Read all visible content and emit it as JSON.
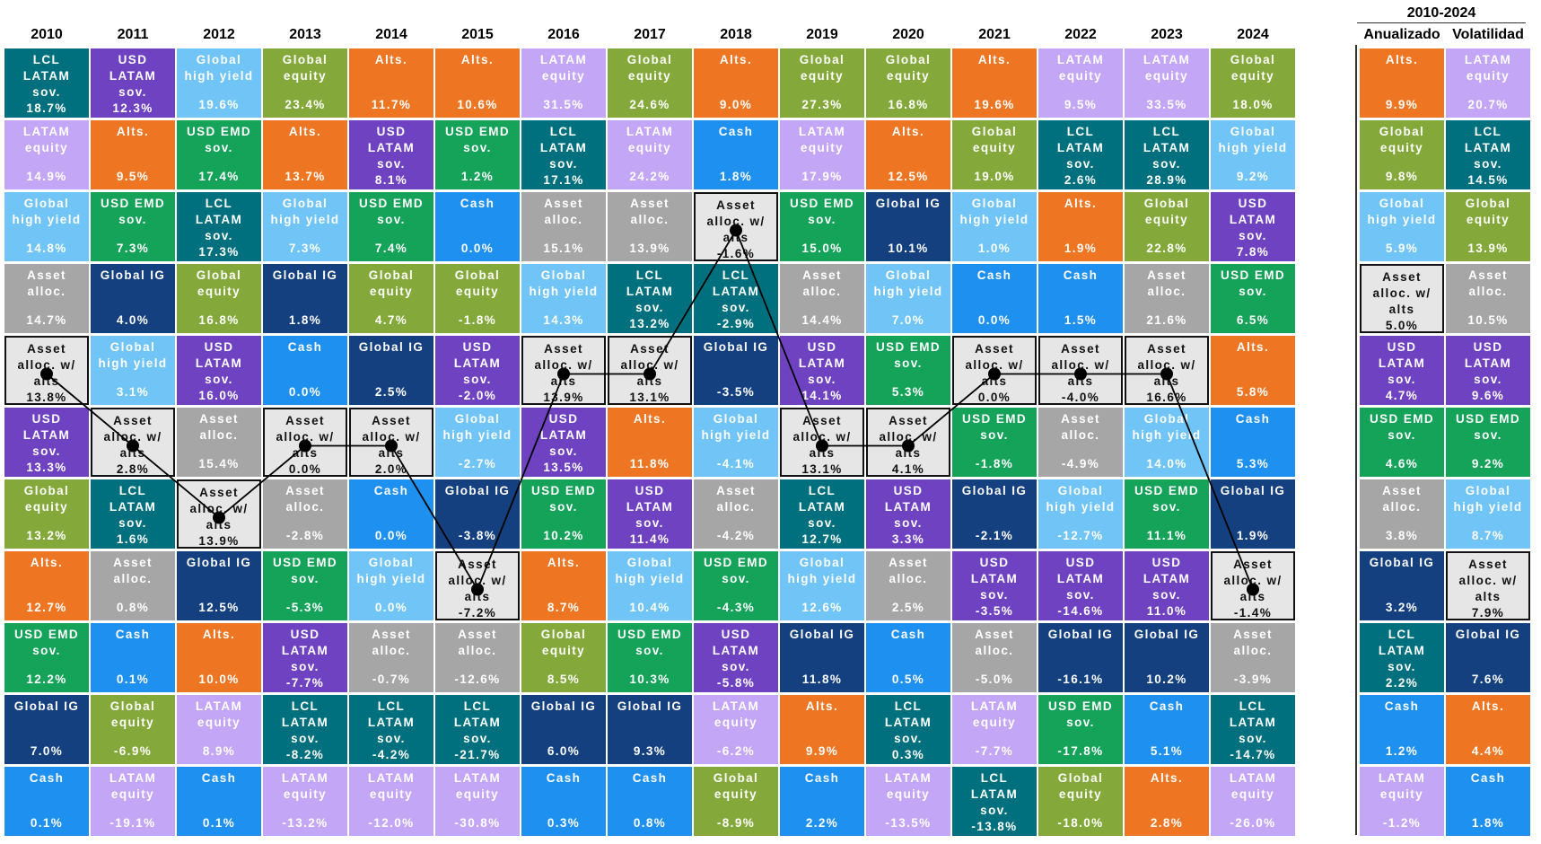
{
  "years": [
    "2010",
    "2011",
    "2012",
    "2013",
    "2014",
    "2015",
    "2016",
    "2017",
    "2018",
    "2019",
    "2020",
    "2021",
    "2022",
    "2023",
    "2024"
  ],
  "summary": {
    "period": "2010-2024",
    "columns": [
      "Anualizado",
      "Volatilidad"
    ]
  },
  "asset_classes": {
    "LCL": {
      "label": "LCL\nLATAM\nsov.",
      "color": "#00707f",
      "text_color": "#ffffff"
    },
    "USD": {
      "label": "USD\nLATAM\nsov.",
      "color": "#6f42c1",
      "text_color": "#ffffff"
    },
    "GHY": {
      "label": "Global\nhigh yield",
      "color": "#70c4f6",
      "text_color": "#ffffff"
    },
    "GEQ": {
      "label": "Global\nequity",
      "color": "#84a93a",
      "text_color": "#ffffff"
    },
    "ALT": {
      "label": "Alts.",
      "color": "#ee7622",
      "text_color": "#ffffff"
    },
    "LEQ": {
      "label": "LATAM\nequity",
      "color": "#c3a6f5",
      "text_color": "#ffffff"
    },
    "CASH": {
      "label": "Cash",
      "color": "#1e90f0",
      "text_color": "#ffffff"
    },
    "EMD": {
      "label": "USD EMD\nsov.",
      "color": "#15a35a",
      "text_color": "#ffffff"
    },
    "AA": {
      "label": "Asset\nalloc.",
      "color": "#a6a6a6",
      "text_color": "#ffffff"
    },
    "AAW": {
      "label": "Asset\nalloc. w/\nalts",
      "color": "#e6e6e6",
      "text_color": "#111111"
    },
    "IG": {
      "label": "Global IG",
      "color": "#14407f",
      "text_color": "#ffffff"
    }
  },
  "chart_data": {
    "type": "table",
    "title": "",
    "highlight": "AAW",
    "columns": [
      {
        "header": "2010",
        "cells": [
          [
            "LCL",
            "18.7%"
          ],
          [
            "LEQ",
            "14.9%"
          ],
          [
            "GHY",
            "14.8%"
          ],
          [
            "AA",
            "14.7%"
          ],
          [
            "AAW",
            "13.8%"
          ],
          [
            "USD",
            "13.3%"
          ],
          [
            "GEQ",
            "13.2%"
          ],
          [
            "ALT",
            "12.7%"
          ],
          [
            "EMD",
            "12.2%"
          ],
          [
            "IG",
            "7.0%"
          ],
          [
            "CASH",
            "0.1%"
          ]
        ]
      },
      {
        "header": "2011",
        "cells": [
          [
            "USD",
            "12.3%"
          ],
          [
            "ALT",
            "9.5%"
          ],
          [
            "EMD",
            "7.3%"
          ],
          [
            "IG",
            "4.0%"
          ],
          [
            "GHY",
            "3.1%"
          ],
          [
            "AAW",
            "2.8%"
          ],
          [
            "LCL",
            "1.6%"
          ],
          [
            "AA",
            "0.8%"
          ],
          [
            "CASH",
            "0.1%"
          ],
          [
            "GEQ",
            "-6.9%"
          ],
          [
            "LEQ",
            "-19.1%"
          ]
        ]
      },
      {
        "header": "2012",
        "cells": [
          [
            "GHY",
            "19.6%"
          ],
          [
            "EMD",
            "17.4%"
          ],
          [
            "LCL",
            "17.3%"
          ],
          [
            "GEQ",
            "16.8%"
          ],
          [
            "USD",
            "16.0%"
          ],
          [
            "AA",
            "15.4%"
          ],
          [
            "AAW",
            "13.9%"
          ],
          [
            "IG",
            "12.5%"
          ],
          [
            "ALT",
            "10.0%"
          ],
          [
            "LEQ",
            "8.9%"
          ],
          [
            "CASH",
            "0.1%"
          ]
        ]
      },
      {
        "header": "2013",
        "cells": [
          [
            "GEQ",
            "23.4%"
          ],
          [
            "ALT",
            "13.7%"
          ],
          [
            "GHY",
            "7.3%"
          ],
          [
            "IG",
            "1.8%"
          ],
          [
            "CASH",
            "0.0%"
          ],
          [
            "AAW",
            "0.0%"
          ],
          [
            "AA",
            "-2.8%"
          ],
          [
            "EMD",
            "-5.3%"
          ],
          [
            "USD",
            "-7.7%"
          ],
          [
            "LCL",
            "-8.2%"
          ],
          [
            "LEQ",
            "-13.2%"
          ]
        ]
      },
      {
        "header": "2014",
        "cells": [
          [
            "ALT",
            "11.7%"
          ],
          [
            "USD",
            "8.1%"
          ],
          [
            "EMD",
            "7.4%"
          ],
          [
            "GEQ",
            "4.7%"
          ],
          [
            "IG",
            "2.5%"
          ],
          [
            "AAW",
            "2.0%"
          ],
          [
            "CASH",
            "0.0%"
          ],
          [
            "GHY",
            "0.0%"
          ],
          [
            "AA",
            "-0.7%"
          ],
          [
            "LCL",
            "-4.2%"
          ],
          [
            "LEQ",
            "-12.0%"
          ]
        ]
      },
      {
        "header": "2015",
        "cells": [
          [
            "ALT",
            "10.6%"
          ],
          [
            "EMD",
            "1.2%"
          ],
          [
            "CASH",
            "0.0%"
          ],
          [
            "GEQ",
            "-1.8%"
          ],
          [
            "USD",
            "-2.0%"
          ],
          [
            "GHY",
            "-2.7%"
          ],
          [
            "IG",
            "-3.8%"
          ],
          [
            "AAW",
            "-7.2%"
          ],
          [
            "AA",
            "-12.6%"
          ],
          [
            "LCL",
            "-21.7%"
          ],
          [
            "LEQ",
            "-30.8%"
          ]
        ]
      },
      {
        "header": "2016",
        "cells": [
          [
            "LEQ",
            "31.5%"
          ],
          [
            "LCL",
            "17.1%"
          ],
          [
            "AA",
            "15.1%"
          ],
          [
            "GHY",
            "14.3%"
          ],
          [
            "AAW",
            "13.9%"
          ],
          [
            "USD",
            "13.5%"
          ],
          [
            "EMD",
            "10.2%"
          ],
          [
            "ALT",
            "8.7%"
          ],
          [
            "GEQ",
            "8.5%"
          ],
          [
            "IG",
            "6.0%"
          ],
          [
            "CASH",
            "0.3%"
          ]
        ]
      },
      {
        "header": "2017",
        "cells": [
          [
            "GEQ",
            "24.6%"
          ],
          [
            "LEQ",
            "24.2%"
          ],
          [
            "AA",
            "13.9%"
          ],
          [
            "LCL",
            "13.2%"
          ],
          [
            "AAW",
            "13.1%"
          ],
          [
            "ALT",
            "11.8%"
          ],
          [
            "USD",
            "11.4%"
          ],
          [
            "GHY",
            "10.4%"
          ],
          [
            "EMD",
            "10.3%"
          ],
          [
            "IG",
            "9.3%"
          ],
          [
            "CASH",
            "0.8%"
          ]
        ]
      },
      {
        "header": "2018",
        "cells": [
          [
            "ALT",
            "9.0%"
          ],
          [
            "CASH",
            "1.8%"
          ],
          [
            "AAW",
            "-1.6%"
          ],
          [
            "LCL",
            "-2.9%"
          ],
          [
            "IG",
            "-3.5%"
          ],
          [
            "GHY",
            "-4.1%"
          ],
          [
            "AA",
            "-4.2%"
          ],
          [
            "EMD",
            "-4.3%"
          ],
          [
            "USD",
            "-5.8%"
          ],
          [
            "LEQ",
            "-6.2%"
          ],
          [
            "GEQ",
            "-8.9%"
          ]
        ]
      },
      {
        "header": "2019",
        "cells": [
          [
            "GEQ",
            "27.3%"
          ],
          [
            "LEQ",
            "17.9%"
          ],
          [
            "EMD",
            "15.0%"
          ],
          [
            "AA",
            "14.4%"
          ],
          [
            "USD",
            "14.1%"
          ],
          [
            "AAW",
            "13.1%"
          ],
          [
            "LCL",
            "12.7%"
          ],
          [
            "GHY",
            "12.6%"
          ],
          [
            "IG",
            "11.8%"
          ],
          [
            "ALT",
            "9.9%"
          ],
          [
            "CASH",
            "2.2%"
          ]
        ]
      },
      {
        "header": "2020",
        "cells": [
          [
            "GEQ",
            "16.8%"
          ],
          [
            "ALT",
            "12.5%"
          ],
          [
            "IG",
            "10.1%"
          ],
          [
            "GHY",
            "7.0%"
          ],
          [
            "EMD",
            "5.3%"
          ],
          [
            "AAW",
            "4.1%"
          ],
          [
            "USD",
            "3.3%"
          ],
          [
            "AA",
            "2.5%"
          ],
          [
            "CASH",
            "0.5%"
          ],
          [
            "LCL",
            "0.3%"
          ],
          [
            "LEQ",
            "-13.5%"
          ]
        ]
      },
      {
        "header": "2021",
        "cells": [
          [
            "ALT",
            "19.6%"
          ],
          [
            "GEQ",
            "19.0%"
          ],
          [
            "GHY",
            "1.0%"
          ],
          [
            "CASH",
            "0.0%"
          ],
          [
            "AAW",
            "0.0%"
          ],
          [
            "EMD",
            "-1.8%"
          ],
          [
            "IG",
            "-2.1%"
          ],
          [
            "USD",
            "-3.5%"
          ],
          [
            "AA",
            "-5.0%"
          ],
          [
            "LEQ",
            "-7.7%"
          ],
          [
            "LCL",
            "-13.8%"
          ]
        ]
      },
      {
        "header": "2022",
        "cells": [
          [
            "LEQ",
            "9.5%"
          ],
          [
            "LCL",
            "2.6%"
          ],
          [
            "ALT",
            "1.9%"
          ],
          [
            "CASH",
            "1.5%"
          ],
          [
            "AAW",
            "-4.0%"
          ],
          [
            "AA",
            "-4.9%"
          ],
          [
            "GHY",
            "-12.7%"
          ],
          [
            "USD",
            "-14.6%"
          ],
          [
            "IG",
            "-16.1%"
          ],
          [
            "EMD",
            "-17.8%"
          ],
          [
            "GEQ",
            "-18.0%"
          ]
        ]
      },
      {
        "header": "2023",
        "cells": [
          [
            "LEQ",
            "33.5%"
          ],
          [
            "LCL",
            "28.9%"
          ],
          [
            "GEQ",
            "22.8%"
          ],
          [
            "AA",
            "21.6%"
          ],
          [
            "AAW",
            "16.6%"
          ],
          [
            "GHY",
            "14.0%"
          ],
          [
            "EMD",
            "11.1%"
          ],
          [
            "USD",
            "11.0%"
          ],
          [
            "IG",
            "10.2%"
          ],
          [
            "CASH",
            "5.1%"
          ],
          [
            "ALT",
            "2.8%"
          ]
        ]
      },
      {
        "header": "2024",
        "cells": [
          [
            "GEQ",
            "18.0%"
          ],
          [
            "GHY",
            "9.2%"
          ],
          [
            "USD",
            "7.8%"
          ],
          [
            "EMD",
            "6.5%"
          ],
          [
            "ALT",
            "5.8%"
          ],
          [
            "CASH",
            "5.3%"
          ],
          [
            "IG",
            "1.9%"
          ],
          [
            "AAW",
            "-1.4%"
          ],
          [
            "AA",
            "-3.9%"
          ],
          [
            "LCL",
            "-14.7%"
          ],
          [
            "LEQ",
            "-26.0%"
          ]
        ]
      },
      {
        "header": "Anualizado",
        "cells": [
          [
            "ALT",
            "9.9%"
          ],
          [
            "GEQ",
            "9.8%"
          ],
          [
            "GHY",
            "5.9%"
          ],
          [
            "AAW",
            "5.0%"
          ],
          [
            "USD",
            "4.7%"
          ],
          [
            "EMD",
            "4.6%"
          ],
          [
            "AA",
            "3.8%"
          ],
          [
            "IG",
            "3.2%"
          ],
          [
            "LCL",
            "2.2%"
          ],
          [
            "CASH",
            "1.2%"
          ],
          [
            "LEQ",
            "-1.2%"
          ]
        ]
      },
      {
        "header": "Volatilidad",
        "cells": [
          [
            "LEQ",
            "20.7%"
          ],
          [
            "LCL",
            "14.5%"
          ],
          [
            "GEQ",
            "13.9%"
          ],
          [
            "AA",
            "10.5%"
          ],
          [
            "USD",
            "9.6%"
          ],
          [
            "EMD",
            "9.2%"
          ],
          [
            "GHY",
            "8.7%"
          ],
          [
            "AAW",
            "7.9%"
          ],
          [
            "IG",
            "7.6%"
          ],
          [
            "ALT",
            "4.4%"
          ],
          [
            "CASH",
            "1.8%"
          ]
        ]
      }
    ]
  }
}
